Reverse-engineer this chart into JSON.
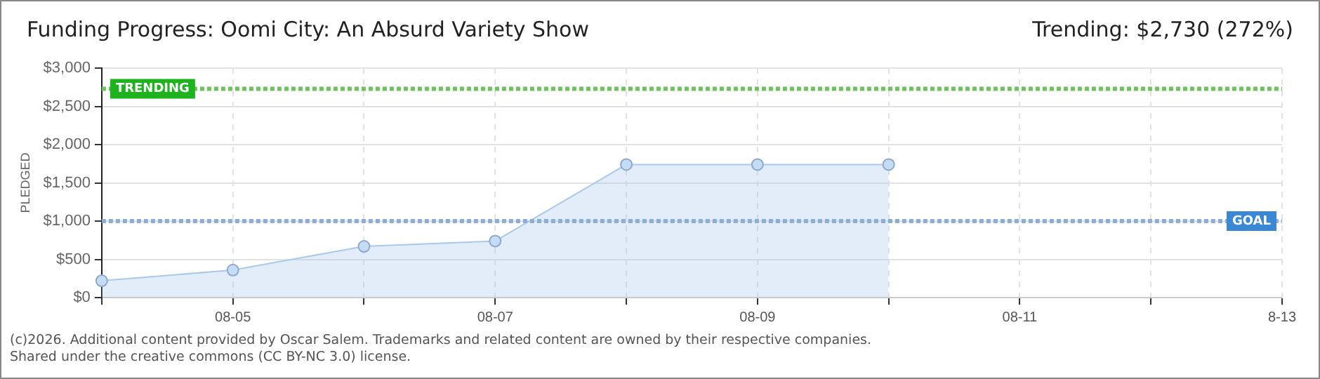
{
  "chart_data": {
    "type": "area",
    "title": "Funding Progress: Oomi City: An Absurd Variety Show",
    "subtitle": "Trending:  $2,730 (272%)",
    "ylabel": "PLEDGED",
    "categories": [
      null,
      "08-05",
      null,
      "08-07",
      null,
      "08-09",
      null,
      "08-11",
      null,
      "8-13"
    ],
    "series": [
      {
        "color": "#a9c8ec",
        "values": [
          220,
          360,
          670,
          740,
          1740,
          1740,
          1740,
          null,
          null,
          null
        ]
      }
    ],
    "ylim": [
      0,
      3000
    ],
    "yticks": [
      {
        "value": 0,
        "label": "$0"
      },
      {
        "value": 500,
        "label": "$500"
      },
      {
        "value": 1000,
        "label": "$1,000"
      },
      {
        "value": 1500,
        "label": "$1,500"
      },
      {
        "value": 2000,
        "label": "$2,000"
      },
      {
        "value": 2500,
        "label": "$2,500"
      },
      {
        "value": 3000,
        "label": "$3,000"
      }
    ],
    "ref_lines": [
      {
        "axis": "y",
        "value": 2730,
        "label": "TRENDING",
        "color": "#6cc35a",
        "line_style": "dotted"
      },
      {
        "axis": "y",
        "value": 1000,
        "label": "GOAL",
        "color": "#8aaed6",
        "line_style": "dotted"
      }
    ],
    "annotations": [
      "(c)2026. Additional content provided by Oscar Salem. Trademarks and related content are owned by their respective companies.",
      "Shared under the creative commons (CC BY-NC 3.0) license."
    ],
    "grid": true,
    "legend": false,
    "marker": "circle",
    "line_style": "solid"
  }
}
